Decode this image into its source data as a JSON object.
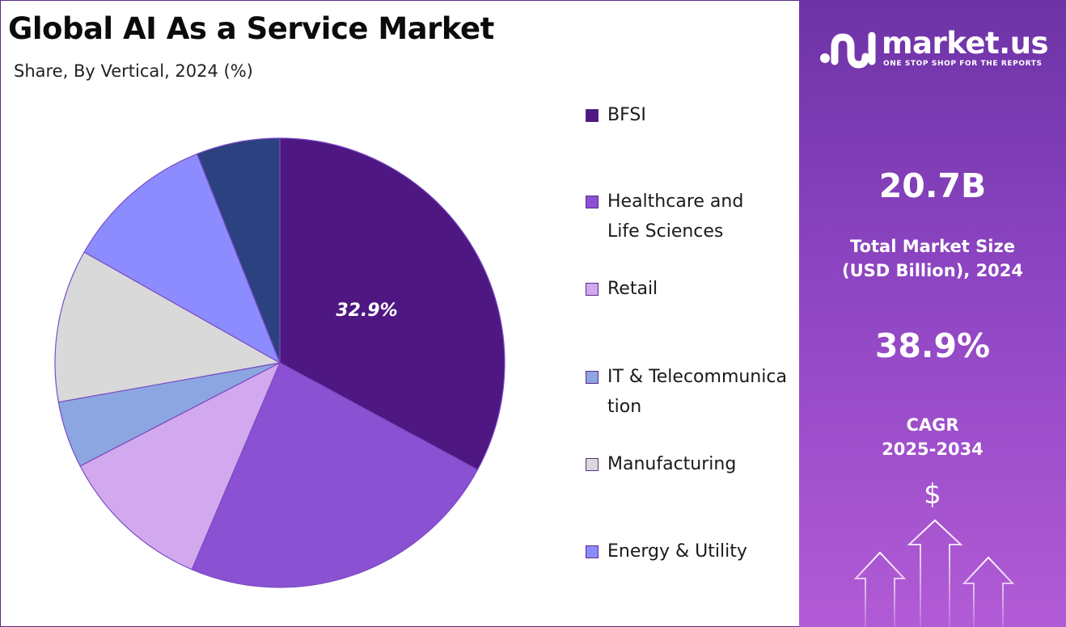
{
  "header": {
    "title": "Global AI As a Service Market",
    "subtitle": "Share, By Vertical, 2024 (%)"
  },
  "chart_data": {
    "type": "pie",
    "title": "Global AI As a Service Market",
    "subtitle": "Share, By Vertical, 2024 (%)",
    "start_angle_deg": 0,
    "direction": "clockwise",
    "slices": [
      {
        "label": "BFSI",
        "value": 32.9,
        "color": "#4e1782",
        "data_label": "32.9%"
      },
      {
        "label": "Healthcare and Life Sciences",
        "value": 23.5,
        "color": "#8a51d2",
        "data_label": ""
      },
      {
        "label": "Retail",
        "value": 11.0,
        "color": "#d2a9ee",
        "data_label": ""
      },
      {
        "label": "IT & Telecommunication",
        "value": 4.8,
        "color": "#8ba6e0",
        "data_label": ""
      },
      {
        "label": "Manufacturing",
        "value": 11.0,
        "color": "#d9d9d9",
        "data_label": ""
      },
      {
        "label": "Energy & Utility",
        "value": 10.8,
        "color": "#8c8cff",
        "data_label": ""
      },
      {
        "label": "",
        "value": 6.0,
        "color": "#2c4180",
        "data_label": ""
      }
    ],
    "legend_position": "right"
  },
  "legend": {
    "items": [
      {
        "label": "BFSI",
        "color": "#4e1782"
      },
      {
        "label": "Healthcare and Life Sciences",
        "color": "#8a51d2"
      },
      {
        "label": "Retail",
        "color": "#d2a9ee"
      },
      {
        "label": "IT & Telecommunication",
        "color": "#8ba6e0"
      },
      {
        "label": "Manufacturing",
        "color": "#d9d9d9"
      },
      {
        "label": "Energy & Utility",
        "color": "#8c8cff"
      }
    ]
  },
  "panel": {
    "brand": "market.us",
    "tagline": "ONE STOP SHOP FOR THE REPORTS",
    "market_size_value": "20.7B",
    "market_size_label_1": "Total Market Size",
    "market_size_label_2": "(USD Billion), 2024",
    "cagr_value": "38.9%",
    "cagr_label_1": "CAGR",
    "cagr_label_2": "2025-2034",
    "dollar_symbol": "$"
  }
}
